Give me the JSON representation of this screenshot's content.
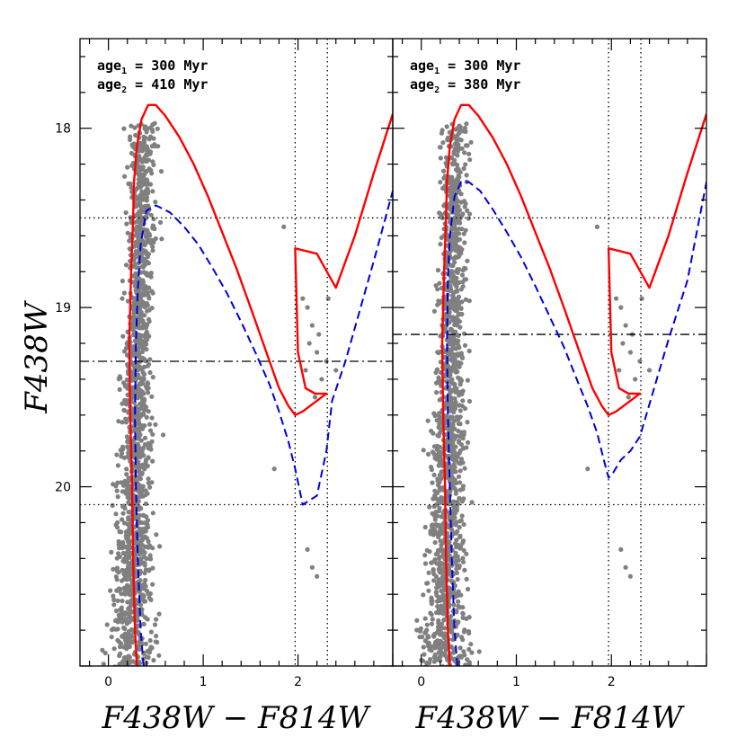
{
  "chart_data": [
    {
      "type": "scatter",
      "panel": "left",
      "xlabel": "F438W − F814W",
      "ylabel": "F438W",
      "xlim": [
        -0.3,
        3.0
      ],
      "ylim": [
        21.0,
        17.5
      ],
      "y_inverted": true,
      "x_ticks": [
        0,
        1,
        2
      ],
      "y_ticks": [
        18,
        19,
        20
      ],
      "annotations": [
        {
          "prefix": "age",
          "sub": "1",
          "text": " = 300 Myr"
        },
        {
          "prefix": "age",
          "sub": "2",
          "text": " = 410 Myr"
        }
      ],
      "reference_lines": {
        "dotted_vertical_x": [
          1.97,
          2.31
        ],
        "dotted_horizontal_y": [
          18.5,
          20.1
        ],
        "dashdot_horizontal_y": 19.3
      },
      "series": [
        {
          "style": "solid",
          "color": "#ff0000",
          "x": [
            0.3,
            0.28,
            0.26,
            0.25,
            0.23,
            0.22,
            0.24,
            0.26,
            0.27,
            0.3,
            0.35,
            0.42,
            0.5,
            0.6,
            0.75,
            0.9,
            1.05,
            1.2,
            1.35,
            1.5,
            1.6,
            1.7,
            1.8,
            1.9,
            1.97,
            2.05,
            2.3,
            2.18,
            2.08,
            2.0,
            1.97,
            2.2,
            2.4,
            2.6,
            2.8,
            3.0
          ],
          "y": [
            21.0,
            20.8,
            20.4,
            20.0,
            19.6,
            19.2,
            18.8,
            18.5,
            18.3,
            18.1,
            17.95,
            17.87,
            17.87,
            17.93,
            18.05,
            18.2,
            18.38,
            18.58,
            18.78,
            19.0,
            19.15,
            19.3,
            19.45,
            19.55,
            19.6,
            19.58,
            19.48,
            19.48,
            19.45,
            19.25,
            18.67,
            18.7,
            18.89,
            18.6,
            18.25,
            17.92
          ]
        },
        {
          "style": "dashed",
          "color": "#0000dd",
          "x": [
            0.37,
            0.34,
            0.31,
            0.29,
            0.28,
            0.29,
            0.31,
            0.34,
            0.4,
            0.5,
            0.65,
            0.8,
            0.95,
            1.1,
            1.25,
            1.4,
            1.55,
            1.7,
            1.8,
            1.9,
            1.97,
            2.05,
            2.2,
            2.3,
            2.36,
            2.5,
            2.65,
            2.8,
            3.0
          ],
          "y": [
            21.0,
            20.8,
            20.4,
            20.0,
            19.6,
            19.2,
            18.9,
            18.65,
            18.46,
            18.43,
            18.47,
            18.55,
            18.65,
            18.78,
            18.92,
            19.08,
            19.25,
            19.43,
            19.58,
            19.75,
            19.9,
            20.1,
            20.05,
            19.8,
            19.52,
            19.3,
            19.02,
            18.74,
            18.35
          ]
        }
      ]
    },
    {
      "type": "scatter",
      "panel": "right",
      "xlabel": "F438W − F814W",
      "ylabel": "",
      "xlim": [
        -0.3,
        3.0
      ],
      "ylim": [
        21.0,
        17.5
      ],
      "y_inverted": true,
      "x_ticks": [
        0,
        1,
        2
      ],
      "y_ticks": [
        18,
        19,
        20
      ],
      "annotations": [
        {
          "prefix": "age",
          "sub": "1",
          "text": " = 300 Myr"
        },
        {
          "prefix": "age",
          "sub": "2",
          "text": " = 380 Myr"
        }
      ],
      "reference_lines": {
        "dotted_vertical_x": [
          1.97,
          2.31
        ],
        "dotted_horizontal_y": [
          18.5,
          20.1
        ],
        "dashdot_horizontal_y": 19.15
      },
      "series": [
        {
          "style": "solid",
          "color": "#ff0000",
          "x": [
            0.3,
            0.28,
            0.26,
            0.25,
            0.23,
            0.22,
            0.24,
            0.26,
            0.27,
            0.3,
            0.35,
            0.42,
            0.5,
            0.6,
            0.75,
            0.9,
            1.05,
            1.2,
            1.35,
            1.5,
            1.6,
            1.7,
            1.8,
            1.9,
            1.97,
            2.05,
            2.3,
            2.18,
            2.08,
            2.0,
            1.97,
            2.2,
            2.4,
            2.6,
            2.8,
            3.0
          ],
          "y": [
            21.0,
            20.8,
            20.4,
            20.0,
            19.6,
            19.2,
            18.8,
            18.5,
            18.3,
            18.1,
            17.95,
            17.87,
            17.87,
            17.93,
            18.05,
            18.2,
            18.38,
            18.58,
            18.78,
            19.0,
            19.15,
            19.3,
            19.45,
            19.55,
            19.6,
            19.58,
            19.48,
            19.48,
            19.45,
            19.25,
            18.67,
            18.7,
            18.89,
            18.6,
            18.25,
            17.92
          ]
        },
        {
          "style": "dashed",
          "color": "#0000dd",
          "x": [
            0.38,
            0.35,
            0.32,
            0.3,
            0.28,
            0.27,
            0.28,
            0.3,
            0.35,
            0.42,
            0.5,
            0.62,
            0.75,
            0.9,
            1.05,
            1.2,
            1.35,
            1.5,
            1.62,
            1.75,
            1.85,
            1.92,
            1.97,
            2.02,
            2.1,
            2.2,
            2.3,
            2.45,
            2.6,
            2.8,
            3.0
          ],
          "y": [
            21.0,
            20.8,
            20.4,
            20.0,
            19.6,
            19.2,
            18.85,
            18.6,
            18.38,
            18.3,
            18.3,
            18.35,
            18.45,
            18.58,
            18.72,
            18.88,
            19.05,
            19.22,
            19.38,
            19.55,
            19.7,
            19.85,
            19.95,
            19.92,
            19.85,
            19.8,
            19.72,
            19.45,
            19.18,
            18.85,
            18.3
          ]
        }
      ]
    }
  ]
}
